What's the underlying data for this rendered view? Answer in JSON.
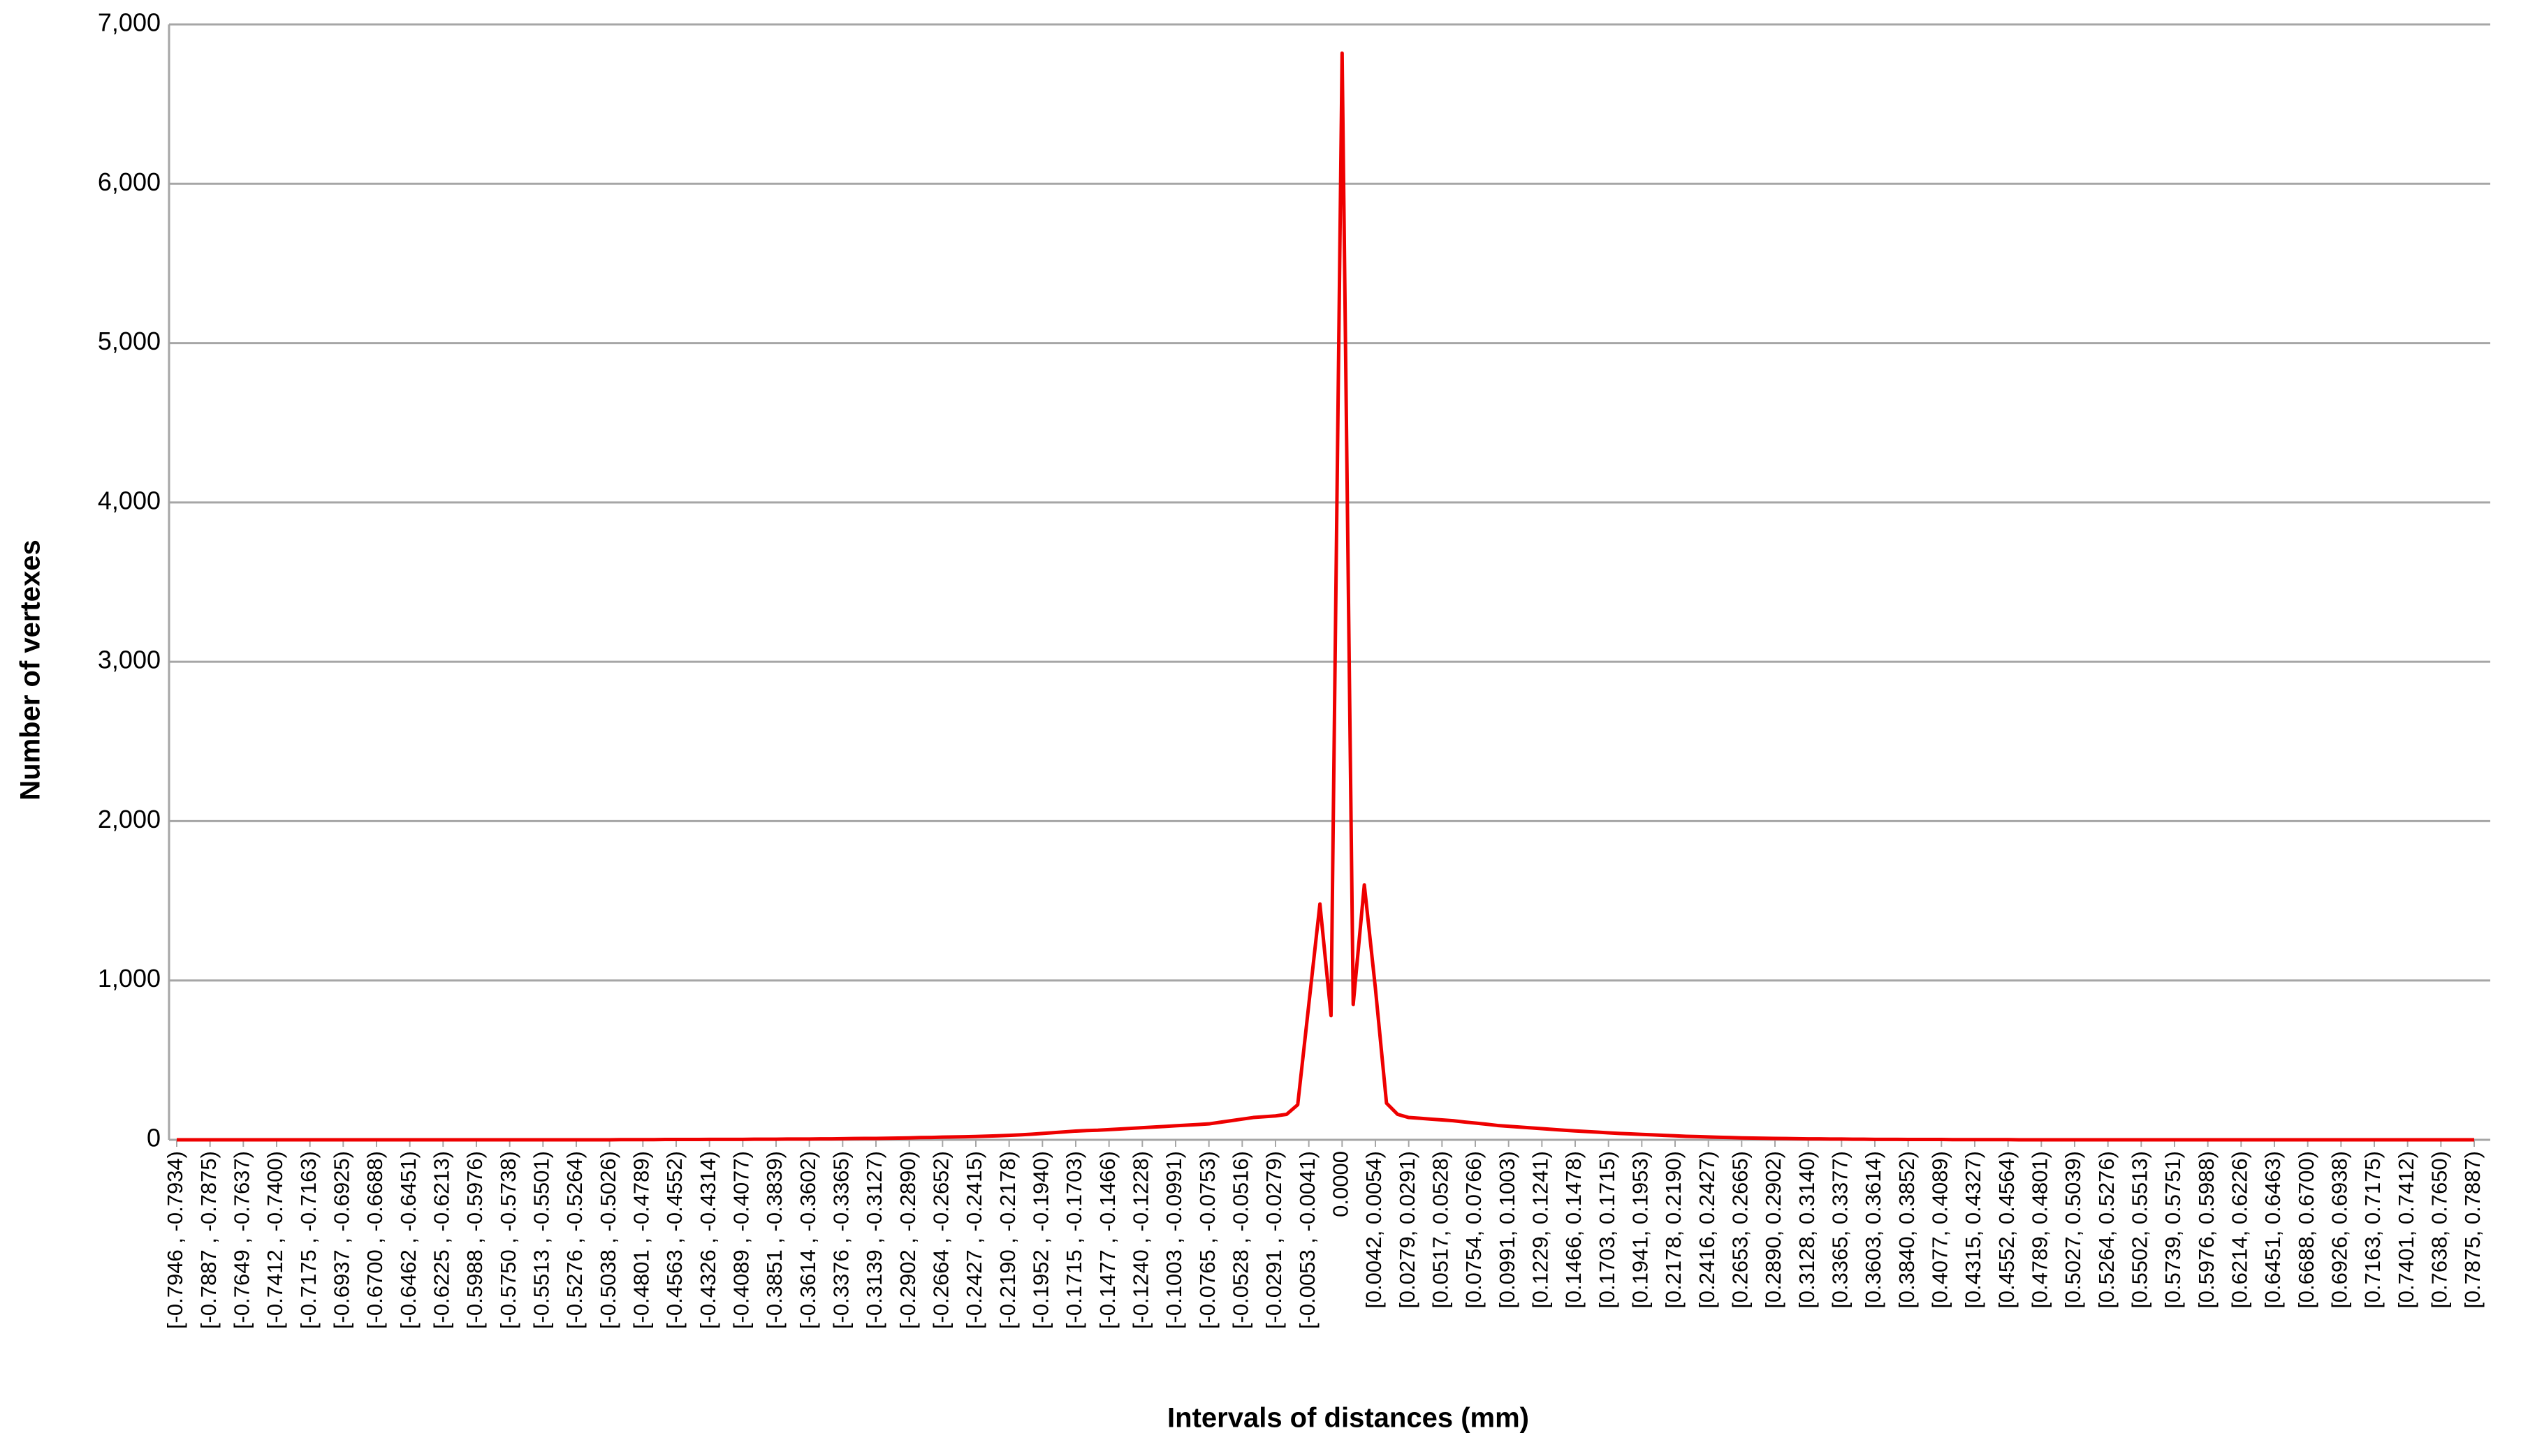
{
  "chart_data": {
    "type": "line",
    "color": "#ee0000",
    "grid": true,
    "x_label": "Intervals of distances (mm)",
    "y_label": "Number of vertexes",
    "ylim": [
      0,
      7000
    ],
    "yticks": [
      0,
      {
        "value": 1000,
        "label": "1,000"
      },
      {
        "value": 2000,
        "label": "2,000"
      },
      {
        "value": 3000,
        "label": "3,000"
      },
      {
        "value": 4000,
        "label": "4,000"
      },
      {
        "value": 5000,
        "label": "5,000"
      },
      {
        "value": 6000,
        "label": "6,000"
      },
      {
        "value": 7000,
        "label": "7,000"
      }
    ],
    "categories": [
      "[-0.7946 , -0.7934)",
      null,
      null,
      "[-0.7887 , -0.7875)",
      null,
      null,
      "[-0.7649 , -0.7637)",
      null,
      null,
      "[-0.7412 , -0.7400)",
      null,
      null,
      "[-0.7175 , -0.7163)",
      null,
      null,
      "[-0.6937 , -0.6925)",
      null,
      null,
      "[-0.6700 , -0.6688)",
      null,
      null,
      "[-0.6462 , -0.6451)",
      null,
      null,
      "[-0.6225 , -0.6213)",
      null,
      null,
      "[-0.5988 , -0.5976)",
      null,
      null,
      "[-0.5750 , -0.5738)",
      null,
      null,
      "[-0.5513 , -0.5501)",
      null,
      null,
      "[-0.5276 , -0.5264)",
      null,
      null,
      "[-0.5038 , -0.5026)",
      null,
      null,
      "[-0.4801 , -0.4789)",
      null,
      null,
      "[-0.4563 , -0.4552)",
      null,
      null,
      "[-0.4326 , -0.4314)",
      null,
      null,
      "[-0.4089 , -0.4077)",
      null,
      null,
      "[-0.3851 , -0.3839)",
      null,
      null,
      "[-0.3614 , -0.3602)",
      null,
      null,
      "[-0.3376 , -0.3365)",
      null,
      null,
      "[-0.3139 , -0.3127)",
      null,
      null,
      "[-0.2902 , -0.2890)",
      null,
      null,
      "[-0.2664 , -0.2652)",
      null,
      null,
      "[-0.2427 , -0.2415)",
      null,
      null,
      "[-0.2190 , -0.2178)",
      null,
      null,
      "[-0.1952 , -0.1940)",
      null,
      null,
      "[-0.1715 , -0.1703)",
      null,
      null,
      "[-0.1477 , -0.1466)",
      null,
      null,
      "[-0.1240 , -0.1228)",
      null,
      null,
      "[-0.1003 , -0.0991)",
      null,
      null,
      "[-0.0765 , -0.0753)",
      null,
      null,
      "[-0.0528 , -0.0516)",
      null,
      null,
      "[-0.0291 , -0.0279)",
      null,
      null,
      "[-0.0053 , -0.0041)",
      null,
      null,
      "0.0000",
      null,
      null,
      "[0.0042, 0.0054)",
      null,
      null,
      "[0.0279, 0.0291)",
      null,
      null,
      "[0.0517, 0.0528)",
      null,
      null,
      "[0.0754, 0.0766)",
      null,
      null,
      "[0.0991, 0.1003)",
      null,
      null,
      "[0.1229, 0.1241)",
      null,
      null,
      "[0.1466, 0.1478)",
      null,
      null,
      "[0.1703, 0.1715)",
      null,
      null,
      "[0.1941, 0.1953)",
      null,
      null,
      "[0.2178, 0.2190)",
      null,
      null,
      "[0.2416, 0.2427)",
      null,
      null,
      "[0.2653, 0.2665)",
      null,
      null,
      "[0.2890, 0.2902)",
      null,
      null,
      "[0.3128, 0.3140)",
      null,
      null,
      "[0.3365, 0.3377)",
      null,
      null,
      "[0.3603, 0.3614)",
      null,
      null,
      "[0.3840, 0.3852)",
      null,
      null,
      "[0.4077, 0.4089)",
      null,
      null,
      "[0.4315, 0.4327)",
      null,
      null,
      "[0.4552, 0.4564)",
      null,
      null,
      "[0.4789, 0.4801)",
      null,
      null,
      "[0.5027, 0.5039)",
      null,
      null,
      "[0.5264, 0.5276)",
      null,
      null,
      "[0.5502, 0.5513)",
      null,
      null,
      "[0.5739, 0.5751)",
      null,
      null,
      "[0.5976, 0.5988)",
      null,
      null,
      "[0.6214, 0.6226)",
      null,
      null,
      "[0.6451, 0.6463)",
      null,
      null,
      "[0.6688, 0.6700)",
      null,
      null,
      "[0.6926, 0.6938)",
      null,
      null,
      "[0.7163, 0.7175)",
      null,
      null,
      "[0.7401, 0.7412)",
      null,
      null,
      "[0.7638, 0.7650)",
      null,
      null,
      "[0.7875, 0.7887)"
    ],
    "values": [
      0,
      0,
      0,
      0,
      0,
      0,
      0,
      0,
      0,
      0,
      0,
      0,
      0,
      0,
      0,
      0,
      0,
      0,
      0,
      0,
      0,
      0,
      0,
      0,
      0,
      0,
      0,
      0,
      0,
      0,
      0,
      0,
      0,
      0,
      0,
      0,
      0,
      0,
      0,
      0,
      1,
      1,
      1,
      1,
      2,
      2,
      2,
      2,
      3,
      3,
      3,
      3,
      4,
      4,
      4,
      5,
      5,
      5,
      6,
      6,
      7,
      8,
      9,
      9,
      10,
      11,
      12,
      14,
      15,
      17,
      18,
      19,
      21,
      23,
      25,
      28,
      31,
      35,
      40,
      45,
      50,
      55,
      58,
      60,
      64,
      68,
      72,
      76,
      80,
      84,
      88,
      92,
      96,
      100,
      110,
      120,
      130,
      140,
      145,
      150,
      160,
      220,
      850,
      1480,
      780,
      6820,
      850,
      1600,
      950,
      230,
      160,
      140,
      135,
      130,
      125,
      120,
      112,
      105,
      98,
      90,
      85,
      80,
      75,
      70,
      65,
      60,
      56,
      52,
      48,
      44,
      40,
      37,
      34,
      31,
      28,
      25,
      22,
      20,
      18,
      16,
      14,
      12,
      11,
      10,
      9,
      8,
      7,
      6,
      6,
      5,
      5,
      4,
      4,
      3,
      3,
      3,
      2,
      2,
      2,
      2,
      1,
      1,
      1,
      1,
      1,
      1,
      0,
      0,
      0,
      0,
      0,
      0,
      0,
      0,
      0,
      0,
      0,
      0,
      0,
      0,
      0,
      0,
      0,
      0,
      0,
      0,
      0,
      0,
      0,
      0,
      0,
      0,
      0,
      0,
      0,
      0,
      0,
      0,
      0,
      0,
      0,
      0,
      0,
      0,
      0,
      0,
      0,
      0
    ]
  }
}
